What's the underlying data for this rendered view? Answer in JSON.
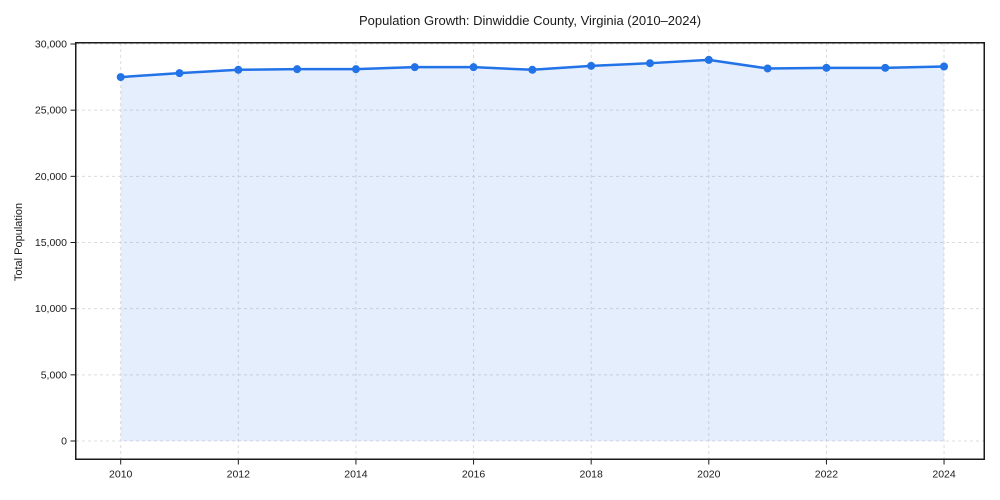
{
  "chart_data": {
    "type": "area",
    "title": "Population Growth: Dinwiddie County, Virginia (2010–2024)",
    "xlabel": "",
    "ylabel": "Total Population",
    "x": [
      2010,
      2011,
      2012,
      2013,
      2014,
      2015,
      2016,
      2017,
      2018,
      2019,
      2020,
      2021,
      2022,
      2023,
      2024
    ],
    "series": [
      {
        "name": "Total Population",
        "values": [
          27500,
          27800,
          28050,
          28100,
          28100,
          28250,
          28250,
          28050,
          28350,
          28550,
          28800,
          28150,
          28200,
          28200,
          28300
        ]
      }
    ],
    "ylim": [
      0,
      30000
    ],
    "yticks": [
      0,
      5000,
      10000,
      15000,
      20000,
      25000,
      30000
    ],
    "ytick_labels": [
      "0",
      "5,000",
      "10,000",
      "15,000",
      "20,000",
      "25,000",
      "30,000"
    ],
    "xticks": [
      2010,
      2012,
      2014,
      2016,
      2018,
      2020,
      2022,
      2024
    ],
    "grid": true,
    "grid_style": "dashed",
    "legend": false,
    "marker": "circle",
    "colors": {
      "line": "#2272e8",
      "marker": "#2272e8",
      "fill": "rgba(34,114,232,0.12)",
      "grid": "#dcdcdc",
      "spine": "#1a1a1a",
      "text": "#1a1a1a",
      "background": "#ffffff"
    }
  }
}
